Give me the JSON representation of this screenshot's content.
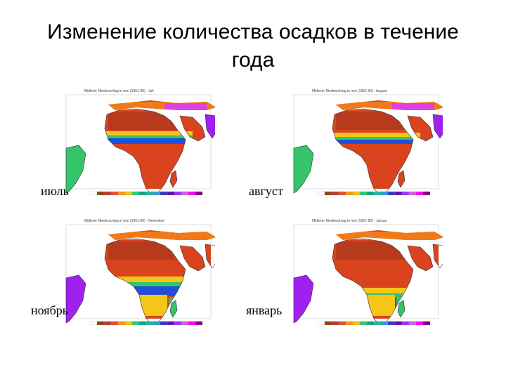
{
  "slide": {
    "title_line1": "Изменение количества осадков в течение",
    "title_line2": "года"
  },
  "maps": [
    {
      "id": "july",
      "caption": "июль",
      "panel_title": "Mittlerer Niederschlag in mm  (1951-90) - Juli"
    },
    {
      "id": "august",
      "caption": "август",
      "panel_title": "Mittlerer Niederschlag in mm  (1951-90) - August"
    },
    {
      "id": "november",
      "caption": "ноябрь",
      "panel_title": "Mittlerer Niederschlag in mm  (1951-90) - November"
    },
    {
      "id": "january",
      "caption": "январь",
      "panel_title": "Mittlerer Niederschlag in mm  (1951-90) - Januar"
    }
  ],
  "legend_colors": [
    "#ffffff",
    "#8b4513",
    "#c0392b",
    "#e74c3c",
    "#f39c12",
    "#f1c40f",
    "#2ecc71",
    "#16a085",
    "#1abc9c",
    "#3498db",
    "#2c3ec4",
    "#6a0dad",
    "#9b30ff",
    "#d35fd3",
    "#ff00ff",
    "#800080"
  ],
  "map_colors": {
    "dry": "#b83a1c",
    "arid": "#d9441e",
    "semi": "#f07a1a",
    "moist": "#f5c518",
    "wet": "#35c46a",
    "verywet": "#1f4fd8",
    "extreme": "#a020f0",
    "peak": "#e040e0"
  }
}
